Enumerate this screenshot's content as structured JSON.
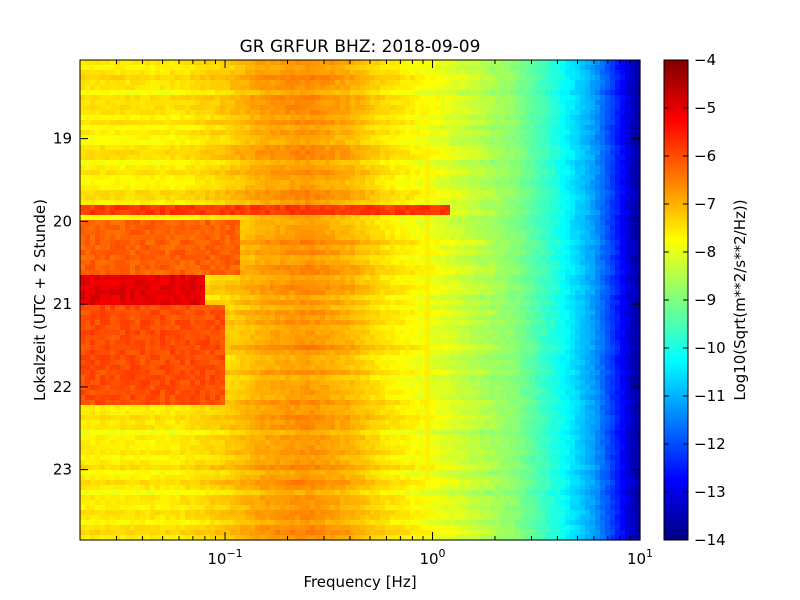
{
  "chart_data": {
    "type": "heatmap",
    "title": "GR GRFUR BHZ: 2018-09-09",
    "xlabel": "Frequency [Hz]",
    "ylabel": "Lokalzeit (UTC + 2 Stunde)",
    "colorbar_label": "Log10(Sqrt(m**2/s**2/Hz))",
    "x_scale": "log",
    "x_range": [
      0.02,
      10
    ],
    "y_range": [
      18.05,
      23.85
    ],
    "y_inverted": true,
    "x_ticks": [
      {
        "value": 0.1,
        "base": "10",
        "exp": "−1"
      },
      {
        "value": 1,
        "base": "10",
        "exp": "0"
      },
      {
        "value": 10,
        "base": "10",
        "exp": "1"
      }
    ],
    "y_ticks": [
      {
        "value": 19,
        "label": "19"
      },
      {
        "value": 20,
        "label": "20"
      },
      {
        "value": 21,
        "label": "21"
      },
      {
        "value": 22,
        "label": "22"
      },
      {
        "value": 23,
        "label": "23"
      }
    ],
    "colorbar_range": [
      -14,
      -4
    ],
    "colorbar_ticks": [
      {
        "value": -4,
        "label": "−4"
      },
      {
        "value": -5,
        "label": "−5"
      },
      {
        "value": -6,
        "label": "−6"
      },
      {
        "value": -7,
        "label": "−7"
      },
      {
        "value": -8,
        "label": "−8"
      },
      {
        "value": -9,
        "label": "−9"
      },
      {
        "value": -10,
        "label": "−10"
      },
      {
        "value": -11,
        "label": "−11"
      },
      {
        "value": -12,
        "label": "−12"
      },
      {
        "value": -13,
        "label": "−13"
      },
      {
        "value": -14,
        "label": "−14"
      }
    ],
    "colormap": "jet",
    "colormap_stops": [
      "#00007f",
      "#0000ff",
      "#007fff",
      "#00ffff",
      "#7fff7f",
      "#ffff00",
      "#ff7f00",
      "#ff0000",
      "#7f0000"
    ],
    "spectrum_profile": [
      {
        "freq": 0.02,
        "value": -7.6
      },
      {
        "freq": 0.06,
        "value": -7.6
      },
      {
        "freq": 0.1,
        "value": -7.3
      },
      {
        "freq": 0.15,
        "value": -6.9
      },
      {
        "freq": 0.25,
        "value": -6.7
      },
      {
        "freq": 0.4,
        "value": -7.0
      },
      {
        "freq": 0.6,
        "value": -7.5
      },
      {
        "freq": 1.0,
        "value": -7.9
      },
      {
        "freq": 1.5,
        "value": -8.3
      },
      {
        "freq": 2.5,
        "value": -8.9
      },
      {
        "freq": 4.0,
        "value": -10.0
      },
      {
        "freq": 6.0,
        "value": -11.2
      },
      {
        "freq": 8.0,
        "value": -12.6
      },
      {
        "freq": 10.0,
        "value": -13.8
      }
    ],
    "events": [
      {
        "time_start": 19.82,
        "time_end": 19.95,
        "freq_max": 1.2,
        "value": -5.8
      },
      {
        "time_start": 20.62,
        "time_end": 21.0,
        "freq_max": 0.08,
        "value": -5.0
      },
      {
        "time_start": 20.0,
        "time_end": 20.62,
        "freq_max": 0.12,
        "value": -6.2
      },
      {
        "time_start": 21.0,
        "time_end": 22.2,
        "freq_max": 0.1,
        "value": -6.0
      }
    ],
    "narrow_lines": [
      {
        "freq": 0.95,
        "time_start": 19.2,
        "time_end": 23.1,
        "value": -7.6
      },
      {
        "freq": 1.15,
        "time_start": 19.2,
        "time_end": 23.1,
        "value": -7.6
      }
    ]
  }
}
